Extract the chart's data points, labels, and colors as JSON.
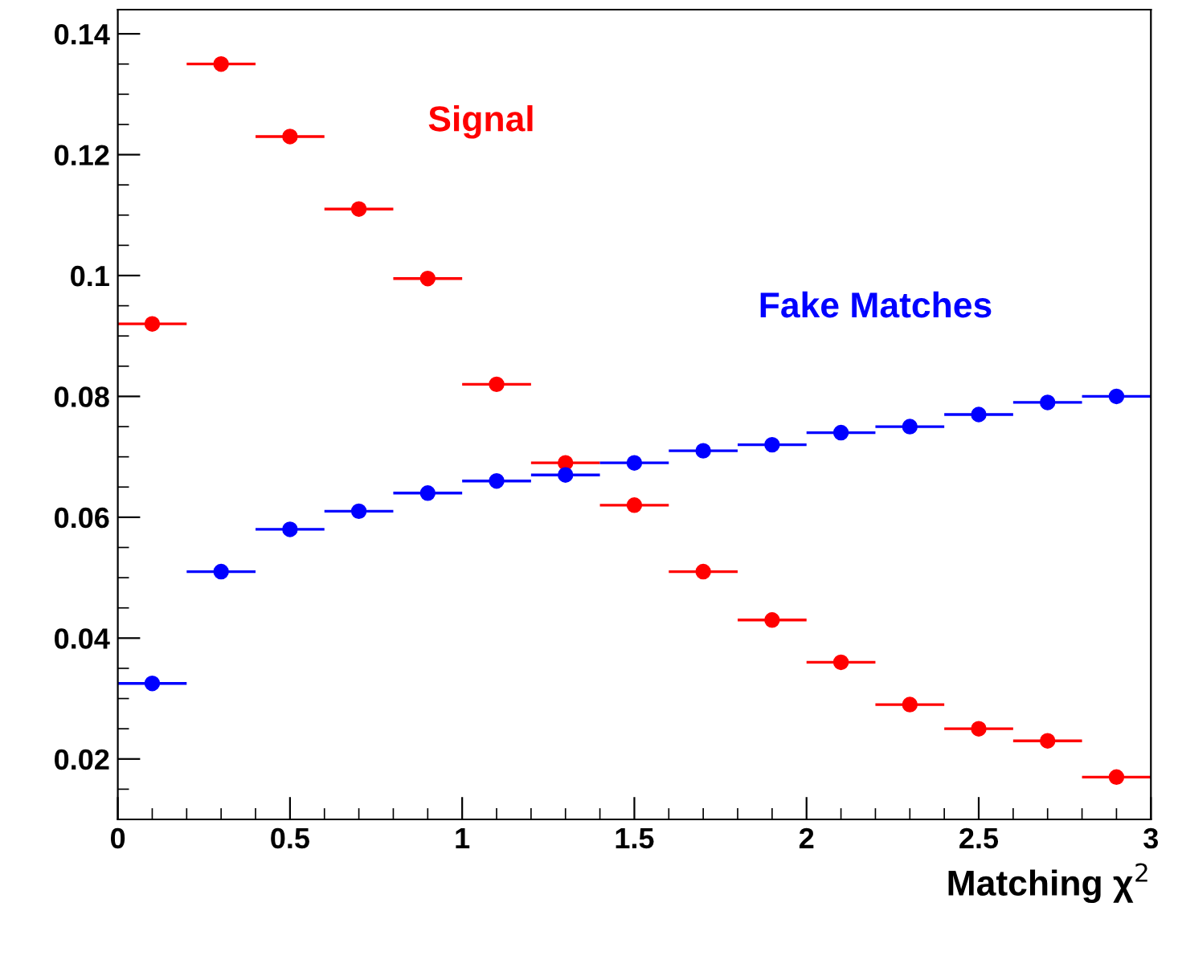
{
  "chart_data": {
    "type": "scatter",
    "xlabel": "Matching χ$^{2}$",
    "x": [
      0.1,
      0.3,
      0.5,
      0.7,
      0.9,
      1.1,
      1.3,
      1.5,
      1.7,
      1.9,
      2.1,
      2.3,
      2.5,
      2.7,
      2.9
    ],
    "series": [
      {
        "name": "Signal",
        "color": "#ff0000",
        "values": [
          0.092,
          0.135,
          0.123,
          0.111,
          0.0995,
          0.082,
          0.069,
          0.062,
          0.051,
          0.043,
          0.036,
          0.029,
          0.025,
          0.023,
          0.017
        ],
        "xerrors": [
          0.1,
          0.1,
          0.1,
          0.1,
          0.1,
          0.1,
          0.1,
          0.1,
          0.1,
          0.1,
          0.1,
          0.1,
          0.1,
          0.1,
          0.1
        ]
      },
      {
        "name": "Fake Matches",
        "color": "#0000ff",
        "values": [
          0.0325,
          0.051,
          0.058,
          0.061,
          0.064,
          0.066,
          0.067,
          0.069,
          0.071,
          0.072,
          0.074,
          0.075,
          0.077,
          0.079,
          0.08
        ],
        "xerrors": [
          0.1,
          0.1,
          0.1,
          0.1,
          0.1,
          0.1,
          0.1,
          0.1,
          0.1,
          0.1,
          0.1,
          0.1,
          0.1,
          0.1,
          0.1
        ]
      }
    ],
    "xlim": [
      0,
      3
    ],
    "ylim": [
      0.01,
      0.144
    ],
    "xticks": [
      0,
      0.5,
      1,
      1.5,
      2,
      2.5,
      3
    ],
    "yticks": [
      0.02,
      0.04,
      0.06,
      0.08,
      0.1,
      0.12,
      0.14
    ],
    "marker": "circle",
    "grid": false,
    "legend": false
  }
}
